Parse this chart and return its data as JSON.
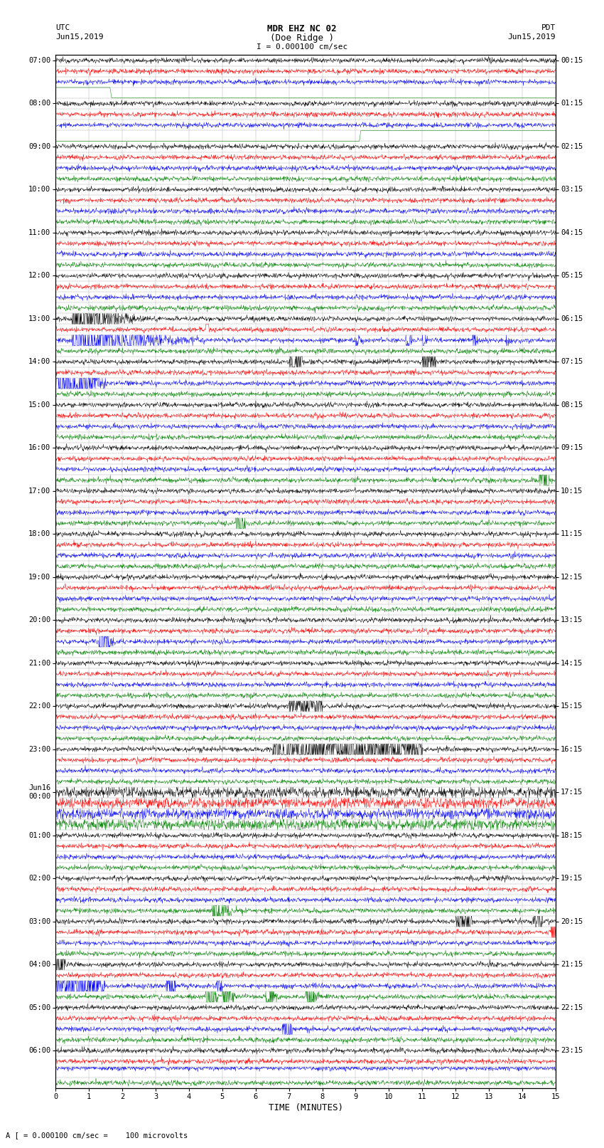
{
  "title_line1": "MDR EHZ NC 02",
  "title_line2": "(Doe Ridge )",
  "scale_label": "I = 0.000100 cm/sec",
  "left_label_top": "UTC",
  "left_label_date": "Jun15,2019",
  "right_label_top": "PDT",
  "right_label_date": "Jun15,2019",
  "xlabel": "TIME (MINUTES)",
  "bottom_note": "A [ = 0.000100 cm/sec =    100 microvolts",
  "utc_hour_labels": [
    "07:00",
    "08:00",
    "09:00",
    "10:00",
    "11:00",
    "12:00",
    "13:00",
    "14:00",
    "15:00",
    "16:00",
    "17:00",
    "18:00",
    "19:00",
    "20:00",
    "21:00",
    "22:00",
    "23:00",
    "Jun16\n00:00",
    "01:00",
    "02:00",
    "03:00",
    "04:00",
    "05:00",
    "06:00"
  ],
  "pdt_hour_labels": [
    "00:15",
    "01:15",
    "02:15",
    "03:15",
    "04:15",
    "05:15",
    "06:15",
    "07:15",
    "08:15",
    "09:15",
    "10:15",
    "11:15",
    "12:15",
    "13:15",
    "14:15",
    "15:15",
    "16:15",
    "17:15",
    "18:15",
    "19:15",
    "20:15",
    "21:15",
    "22:15",
    "23:15"
  ],
  "n_hours": 24,
  "traces_per_hour": 4,
  "minutes_per_row": 15,
  "bg_color": "#ffffff",
  "grid_color": "#aaaaaa",
  "noise_amplitude": 0.012,
  "seed": 12345,
  "row_colors": [
    "black",
    "red",
    "blue",
    "green"
  ]
}
